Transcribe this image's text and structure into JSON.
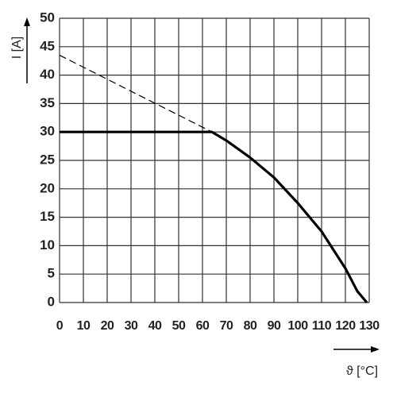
{
  "chart_data": {
    "type": "line",
    "y_label": "I [A]",
    "x_label": "ϑ [°C]",
    "xlim": [
      0,
      130
    ],
    "ylim": [
      0,
      50
    ],
    "xticks": [
      0,
      10,
      20,
      30,
      40,
      50,
      60,
      70,
      80,
      90,
      100,
      110,
      120,
      130
    ],
    "yticks": [
      0,
      5,
      10,
      15,
      20,
      25,
      30,
      35,
      40,
      45,
      50
    ],
    "grid": true,
    "series": [
      {
        "color": "#000000",
        "linestyle": "dashed",
        "x": [
          0,
          64
        ],
        "values": [
          43.5,
          30
        ]
      },
      {
        "color": "#000000",
        "linestyle": "solid",
        "x": [
          0,
          64,
          70,
          80,
          90,
          100,
          110,
          120,
          125,
          129
        ],
        "values": [
          30,
          30,
          28.5,
          25.5,
          22,
          17.5,
          12.5,
          6,
          2,
          0
        ]
      }
    ]
  }
}
